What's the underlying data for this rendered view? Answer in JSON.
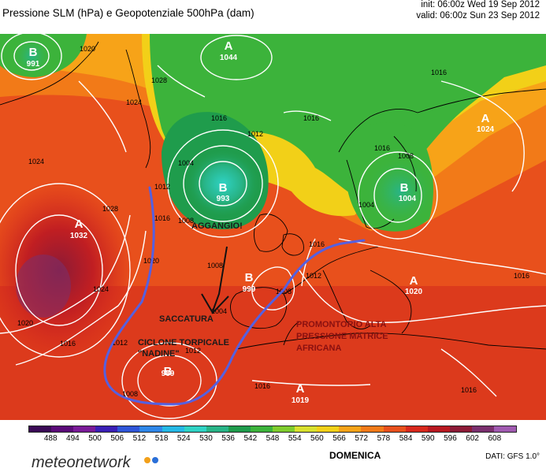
{
  "header": {
    "title": "Pressione SLM (hPa) e Geopotenziale 500hPa (dam)",
    "init": "init: 06:00z Wed 19 Sep 2012",
    "valid": "valid: 06:00z Sun 23 Sep 2012"
  },
  "map": {
    "pressure_centers": {
      "high_atlantic": {
        "symbol": "A",
        "value": "1032"
      },
      "high_north": {
        "symbol": "A",
        "value": "1044"
      },
      "high_russia": {
        "symbol": "A",
        "value": "1024"
      },
      "high_europe": {
        "symbol": "A",
        "value": "1020"
      },
      "high_africa": {
        "symbol": "A",
        "value": "1019"
      },
      "low_atlantic": {
        "symbol": "B",
        "value": "993"
      },
      "low_biscay": {
        "symbol": "B",
        "value": "999"
      },
      "low_baltic": {
        "symbol": "B",
        "value": "1004"
      },
      "low_greenland": {
        "symbol": "B",
        "value": "991"
      },
      "low_nadine": {
        "symbol": "B",
        "value": "989"
      }
    },
    "isobar_labels": [
      "1020",
      "1028",
      "1024",
      "1024",
      "1028",
      "1024",
      "1020",
      "1016",
      "1012",
      "1016",
      "1020",
      "1012",
      "1004",
      "1008",
      "1016",
      "1012",
      "1016",
      "1016",
      "1004",
      "1008",
      "1016",
      "1008",
      "1012",
      "1008",
      "1004",
      "1012",
      "1016",
      "1008",
      "1016",
      "1016",
      "1016"
    ],
    "annotations": {
      "aggancio": "AGGANGIO!",
      "saccatura": "SACCATURA",
      "ciclone": "CICLONE TORPICALE \"NADINE\"",
      "promontorio": "PROMONTORIO ALTA PRESSIONE MATRICE AFRICANA"
    },
    "colors": {
      "annotation_line": "#5560e0",
      "contour": "#ffffff",
      "annotation_text": "#8a1010"
    }
  },
  "colorbar": {
    "ticks": [
      "488",
      "494",
      "500",
      "506",
      "512",
      "518",
      "524",
      "530",
      "536",
      "542",
      "548",
      "554",
      "560",
      "566",
      "572",
      "578",
      "584",
      "590",
      "596",
      "602",
      "608"
    ],
    "colors": [
      "#3a0a55",
      "#5a0a78",
      "#7a1a98",
      "#3a1fb5",
      "#2f55d8",
      "#2e86e8",
      "#25b8e5",
      "#2fd2c4",
      "#28b487",
      "#1f9c4c",
      "#3cb33b",
      "#7fcc2d",
      "#d8e02e",
      "#f2d018",
      "#f7a318",
      "#f27a18",
      "#e8501c",
      "#d8281c",
      "#b81820",
      "#8c1a36",
      "#7a2f6e",
      "#a05ab0"
    ]
  },
  "footer": {
    "logo": "meteonetwork",
    "logo_dot_colors": [
      "#f2a01a",
      "#2a6fd8"
    ],
    "day": "DOMENICA",
    "data_source": "DATI:  GFS  1.0°"
  }
}
